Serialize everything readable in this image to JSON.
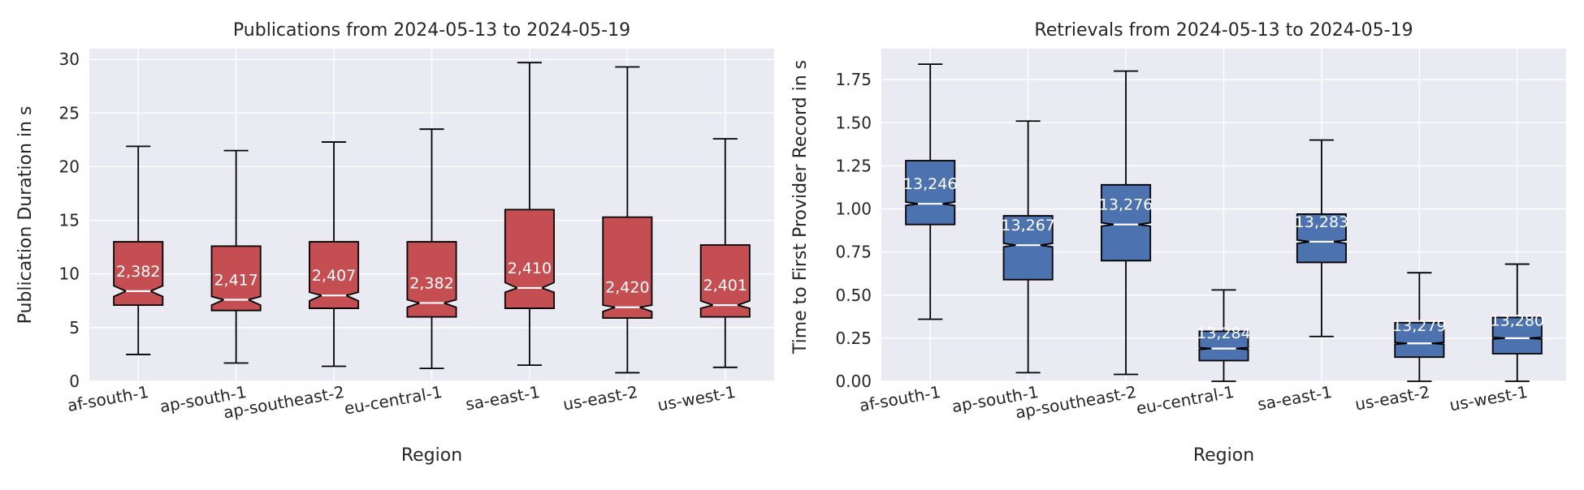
{
  "colors": {
    "background": "#EAEAF2",
    "grid": "#FFFFFF",
    "publications_box": "#C44E52",
    "retrievals_box": "#4C72B0",
    "median": "#FFFFFF",
    "whisker": "#000000",
    "count_label": "#FFFFFF",
    "text": "#262626"
  },
  "chart_data": [
    {
      "type": "box",
      "title": "Publications from 2024-05-13 to 2024-05-19",
      "xlabel": "Region",
      "ylabel": "Publication Duration in s",
      "ylim": [
        0,
        31
      ],
      "yticks": [
        0,
        5,
        10,
        15,
        20,
        25,
        30
      ],
      "ytick_labels": [
        "0",
        "5",
        "10",
        "15",
        "20",
        "25",
        "30"
      ],
      "notched": true,
      "grid": true,
      "categories": [
        "af-south-1",
        "ap-south-1",
        "ap-southeast-2",
        "eu-central-1",
        "sa-east-1",
        "us-east-2",
        "us-west-1"
      ],
      "counts": [
        "2,382",
        "2,417",
        "2,407",
        "2,382",
        "2,410",
        "2,420",
        "2,401"
      ],
      "boxes": [
        {
          "whisker_low": 2.5,
          "q1": 7.1,
          "median": 8.4,
          "q3": 13.0,
          "whisker_high": 21.9,
          "notch_low": 7.9,
          "notch_high": 8.9
        },
        {
          "whisker_low": 1.7,
          "q1": 6.6,
          "median": 7.6,
          "q3": 12.6,
          "whisker_high": 21.5,
          "notch_low": 7.1,
          "notch_high": 7.9
        },
        {
          "whisker_low": 1.4,
          "q1": 6.8,
          "median": 8.0,
          "q3": 13.0,
          "whisker_high": 22.3,
          "notch_low": 7.5,
          "notch_high": 8.3
        },
        {
          "whisker_low": 1.2,
          "q1": 6.0,
          "median": 7.3,
          "q3": 13.0,
          "whisker_high": 23.5,
          "notch_low": 6.9,
          "notch_high": 7.6
        },
        {
          "whisker_low": 1.5,
          "q1": 6.8,
          "median": 8.7,
          "q3": 16.0,
          "whisker_high": 29.7,
          "notch_low": 8.3,
          "notch_high": 9.2
        },
        {
          "whisker_low": 0.8,
          "q1": 5.9,
          "median": 6.9,
          "q3": 15.3,
          "whisker_high": 29.3,
          "notch_low": 6.5,
          "notch_high": 7.1
        },
        {
          "whisker_low": 1.3,
          "q1": 6.0,
          "median": 7.1,
          "q3": 12.7,
          "whisker_high": 22.6,
          "notch_low": 6.8,
          "notch_high": 7.5
        }
      ]
    },
    {
      "type": "box",
      "title": "Retrievals from 2024-05-13 to 2024-05-19",
      "xlabel": "Region",
      "ylabel": "Time to First Provider Record in s",
      "ylim": [
        0,
        1.93
      ],
      "yticks": [
        0,
        0.25,
        0.5,
        0.75,
        1.0,
        1.25,
        1.5,
        1.75
      ],
      "ytick_labels": [
        "0.00",
        "0.25",
        "0.50",
        "0.75",
        "1.00",
        "1.25",
        "1.50",
        "1.75"
      ],
      "notched": true,
      "grid": true,
      "categories": [
        "af-south-1",
        "ap-south-1",
        "ap-southeast-2",
        "eu-central-1",
        "sa-east-1",
        "us-east-2",
        "us-west-1"
      ],
      "counts": [
        "13,246",
        "13,267",
        "13,276",
        "13,284",
        "13,283",
        "13,279",
        "13,280"
      ],
      "boxes": [
        {
          "whisker_low": 0.36,
          "q1": 0.91,
          "median": 1.03,
          "q3": 1.28,
          "whisker_high": 1.84,
          "notch_low": 1.02,
          "notch_high": 1.04
        },
        {
          "whisker_low": 0.05,
          "q1": 0.59,
          "median": 0.79,
          "q3": 0.96,
          "whisker_high": 1.51,
          "notch_low": 0.78,
          "notch_high": 0.8
        },
        {
          "whisker_low": 0.04,
          "q1": 0.7,
          "median": 0.91,
          "q3": 1.14,
          "whisker_high": 1.8,
          "notch_low": 0.9,
          "notch_high": 0.92
        },
        {
          "whisker_low": 0.0,
          "q1": 0.12,
          "median": 0.19,
          "q3": 0.29,
          "whisker_high": 0.53,
          "notch_low": 0.185,
          "notch_high": 0.195
        },
        {
          "whisker_low": 0.26,
          "q1": 0.69,
          "median": 0.81,
          "q3": 0.97,
          "whisker_high": 1.4,
          "notch_low": 0.8,
          "notch_high": 0.82
        },
        {
          "whisker_low": 0.0,
          "q1": 0.14,
          "median": 0.22,
          "q3": 0.34,
          "whisker_high": 0.63,
          "notch_low": 0.215,
          "notch_high": 0.225
        },
        {
          "whisker_low": 0.0,
          "q1": 0.16,
          "median": 0.25,
          "q3": 0.37,
          "whisker_high": 0.68,
          "notch_low": 0.245,
          "notch_high": 0.255
        }
      ]
    }
  ]
}
